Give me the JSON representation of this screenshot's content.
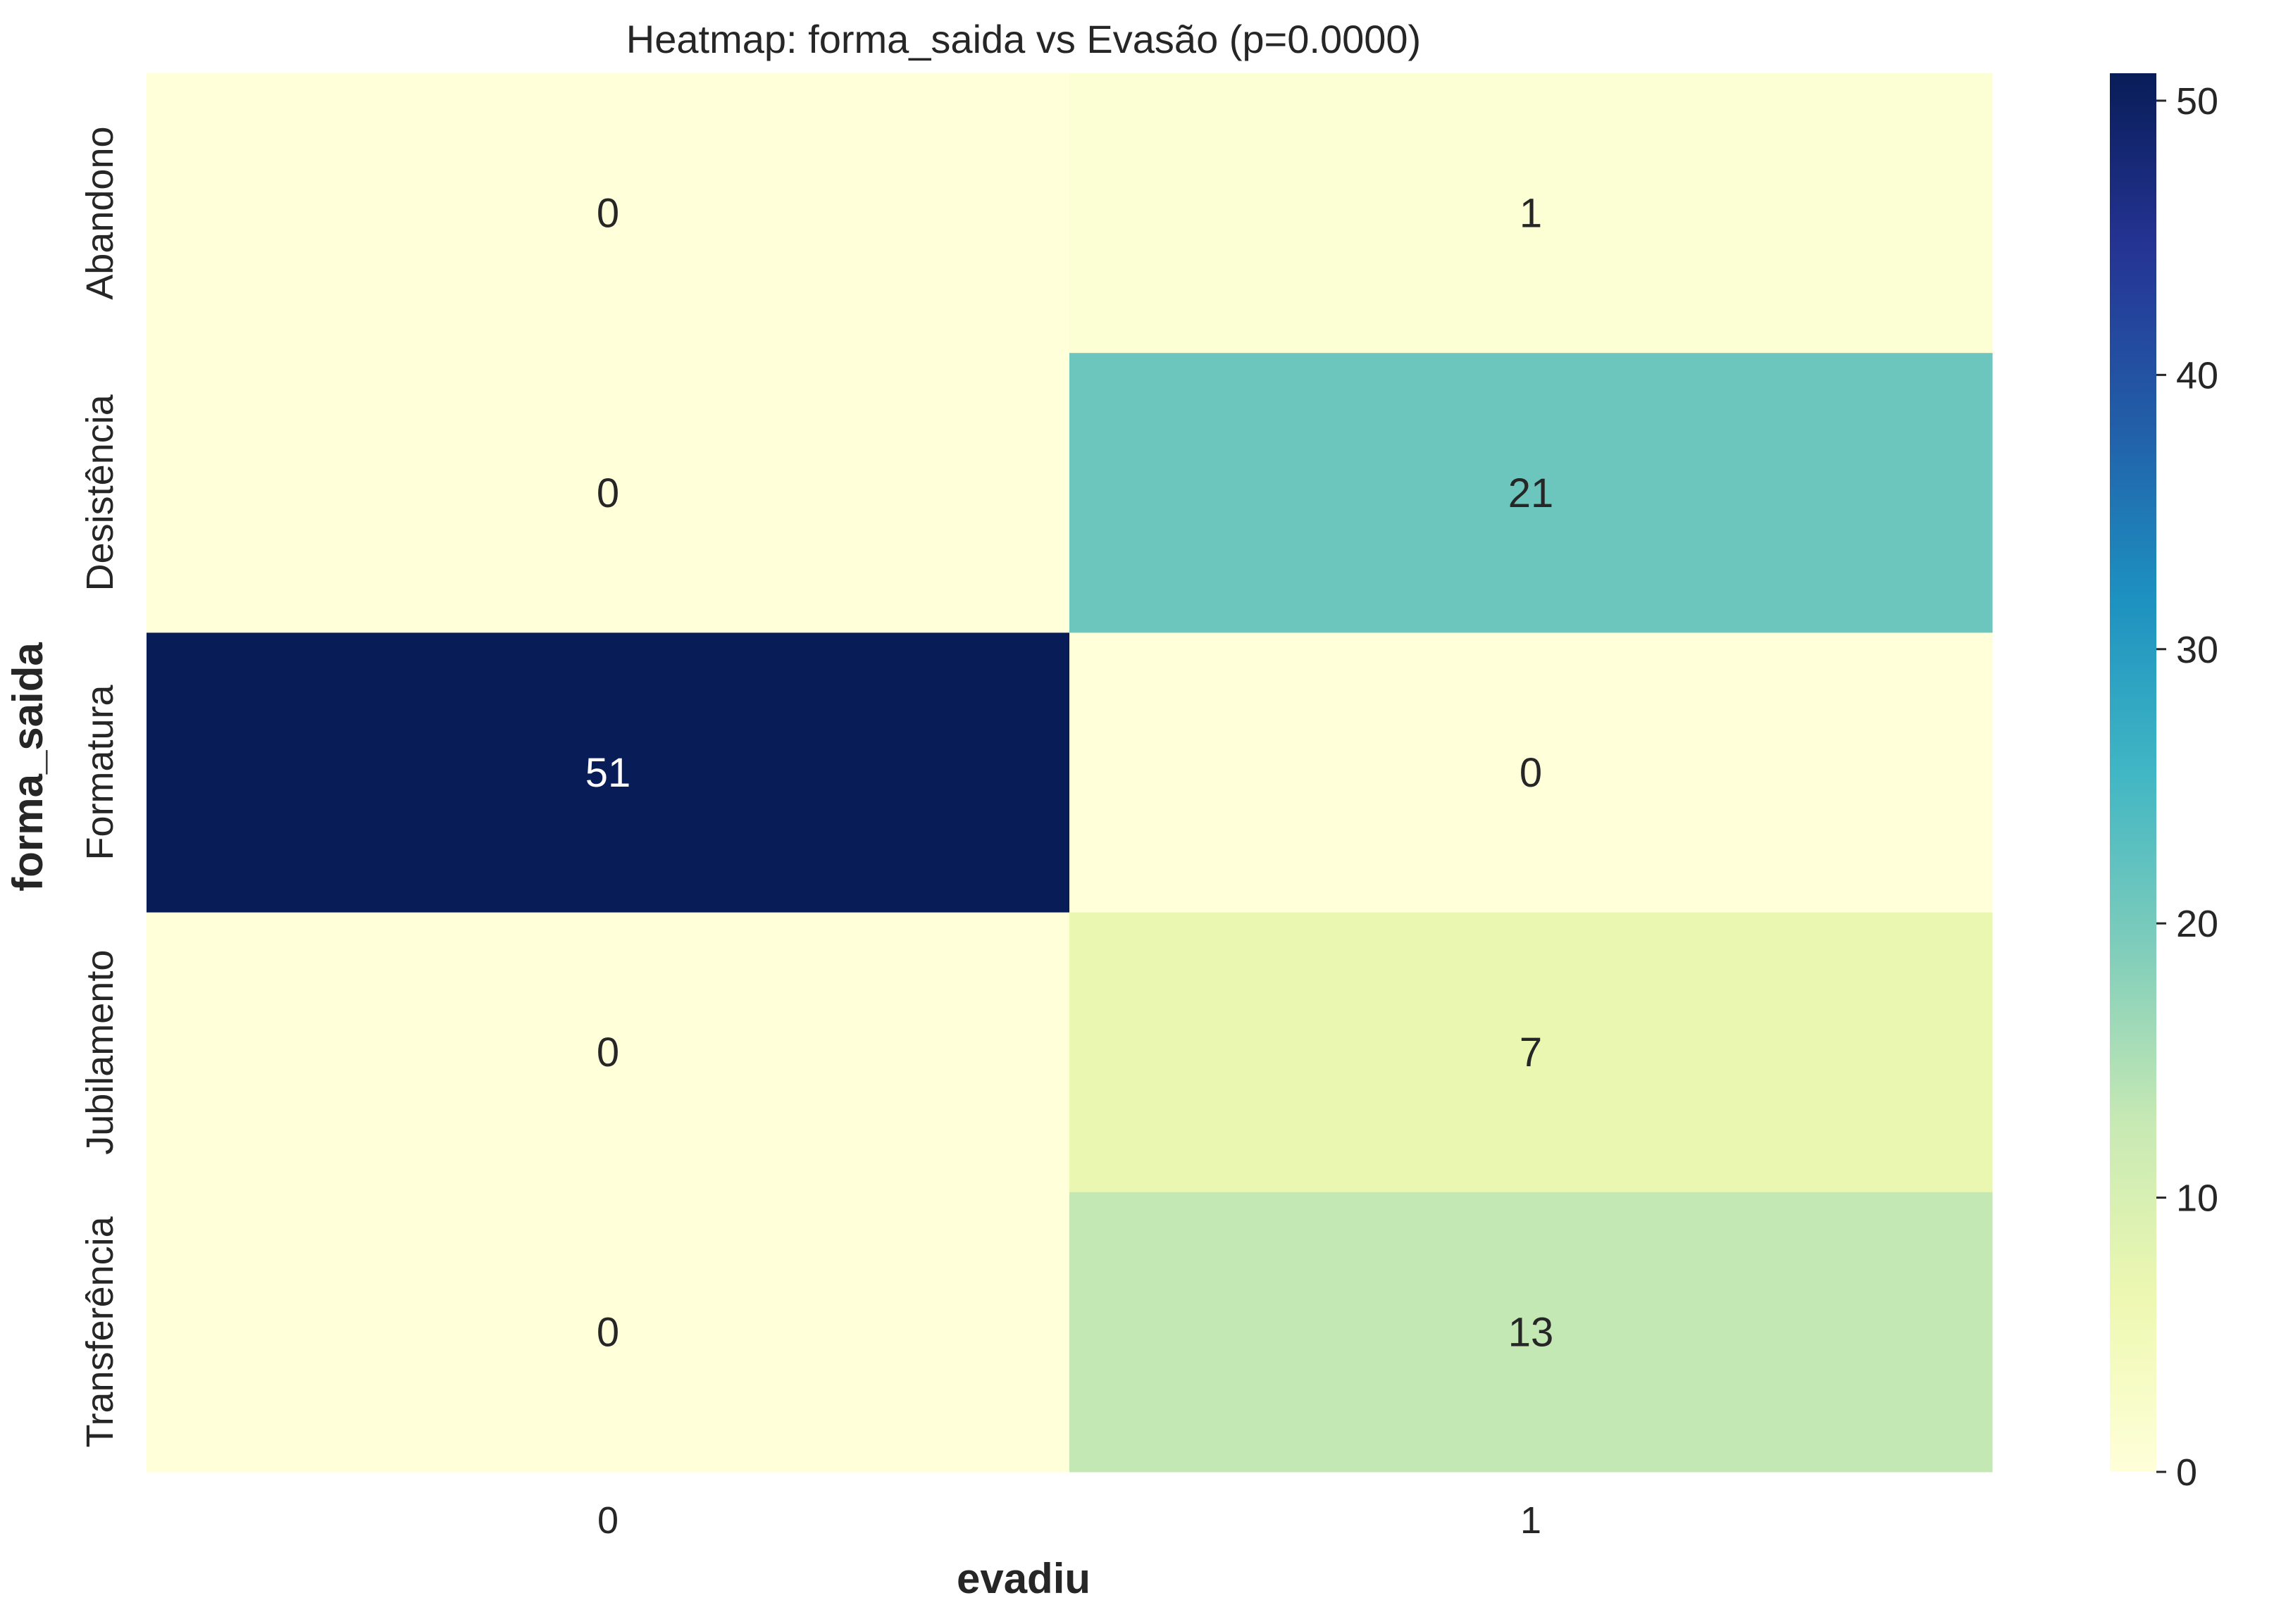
{
  "chart_data": {
    "type": "heatmap",
    "title": "Heatmap: forma_saida vs Evasão (p=0.0000)",
    "xlabel": "evadiu",
    "ylabel": "forma_saida",
    "x_categories": [
      "0",
      "1"
    ],
    "y_categories": [
      "Abandono",
      "Desistência",
      "Formatura",
      "Jubilamento",
      "Transferência"
    ],
    "values": [
      [
        0,
        1
      ],
      [
        0,
        21
      ],
      [
        51,
        0
      ],
      [
        0,
        7
      ],
      [
        0,
        13
      ]
    ],
    "cell_labels": [
      [
        "0",
        "1"
      ],
      [
        "0",
        "21"
      ],
      [
        "51",
        "0"
      ],
      [
        "0",
        "7"
      ],
      [
        "0",
        "13"
      ]
    ],
    "colorbar": {
      "min": 0,
      "max": 51,
      "ticks": [
        0,
        10,
        20,
        30,
        40,
        50
      ],
      "tick_labels": [
        "0",
        "10",
        "20",
        "30",
        "40",
        "50"
      ],
      "colormap": "YlGnBu",
      "colormap_stops": [
        "#ffffd9",
        "#edf8b1",
        "#c7e9b4",
        "#7fcdbb",
        "#41b6c4",
        "#1d91c0",
        "#225ea8",
        "#253494",
        "#081d58"
      ]
    },
    "grid": false,
    "legend": "colorbar-right"
  }
}
